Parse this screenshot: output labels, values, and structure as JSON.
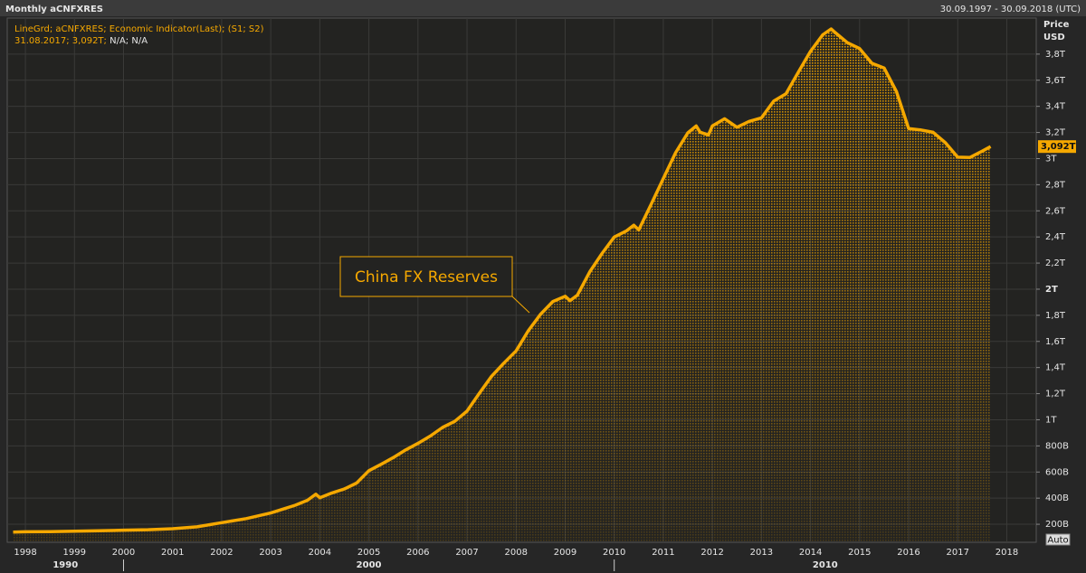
{
  "chart_data": {
    "type": "area-line",
    "title": "Monthly aCNFXRES",
    "subtitle": "30.09.1997 - 30.09.2018 (UTC)",
    "y_axis_label": [
      "Price",
      "USD"
    ],
    "annotation": "China FX Reserves",
    "legend_values": [
      "31.08.2017; 3,092T;",
      "N/A; N/A"
    ],
    "last_value_label": "3,092T",
    "button": "Auto",
    "grid": true,
    "xlim": [
      1997.63,
      2018.6
    ],
    "ylim": [
      62,
      4076
    ],
    "xticks": [
      1998,
      1999,
      2000,
      2001,
      2002,
      2003,
      2004,
      2005,
      2006,
      2007,
      2008,
      2009,
      2010,
      2011,
      2012,
      2013,
      2014,
      2015,
      2016,
      2017,
      2018
    ],
    "decades": [
      1990,
      2000,
      2010
    ],
    "yticks": [
      {
        "value": 200,
        "label": "200B"
      },
      {
        "value": 400,
        "label": "400B"
      },
      {
        "value": 600,
        "label": "600B"
      },
      {
        "value": 800,
        "label": "800B"
      },
      {
        "value": 1000,
        "label": "1T"
      },
      {
        "value": 1200,
        "label": "1,2T"
      },
      {
        "value": 1400,
        "label": "1,4T"
      },
      {
        "value": 1600,
        "label": "1,6T"
      },
      {
        "value": 1800,
        "label": "1,8T"
      },
      {
        "value": 2000,
        "label": "2T"
      },
      {
        "value": 2200,
        "label": "2,2T"
      },
      {
        "value": 2400,
        "label": "2,4T"
      },
      {
        "value": 2600,
        "label": "2,6T"
      },
      {
        "value": 2800,
        "label": "2,8T"
      },
      {
        "value": 3000,
        "label": "3T"
      },
      {
        "value": 3200,
        "label": "3,2T"
      },
      {
        "value": 3400,
        "label": "3,4T"
      },
      {
        "value": 3600,
        "label": "3,6T"
      },
      {
        "value": 3800,
        "label": "3,8T"
      }
    ],
    "x": [
      1997.75,
      1998,
      1998.5,
      1999,
      1999.5,
      2000,
      2000.5,
      2001,
      2001.5,
      2002,
      2002.5,
      2003,
      2003.25,
      2003.5,
      2003.75,
      2003.92,
      2004,
      2004.25,
      2004.5,
      2004.75,
      2005,
      2005.25,
      2005.5,
      2005.75,
      2006,
      2006.25,
      2006.5,
      2006.75,
      2007,
      2007.25,
      2007.5,
      2007.75,
      2008,
      2008.25,
      2008.5,
      2008.75,
      2009,
      2009.1,
      2009.25,
      2009.5,
      2009.75,
      2010,
      2010.25,
      2010.4,
      2010.5,
      2010.75,
      2011,
      2011.25,
      2011.5,
      2011.67,
      2011.75,
      2011.92,
      2012,
      2012.25,
      2012.5,
      2012.75,
      2013,
      2013.25,
      2013.5,
      2013.75,
      2014,
      2014.25,
      2014.42,
      2014.5,
      2014.75,
      2015,
      2015.25,
      2015.5,
      2015.75,
      2016,
      2016.25,
      2016.5,
      2016.75,
      2017,
      2017.25,
      2017.5,
      2017.67
    ],
    "series": [
      {
        "name": "LineGrd; aCNFXRES; Economic Indicator(Last); (S1; S2)",
        "color": "#f5a800",
        "values": [
          140,
          142,
          143,
          147,
          150,
          155,
          158,
          166,
          180,
          212,
          243,
          286,
          316,
          346,
          384,
          430,
          403,
          440,
          470,
          515,
          610,
          659,
          711,
          769,
          819,
          875,
          941,
          988,
          1066,
          1202,
          1333,
          1434,
          1528,
          1682,
          1809,
          1906,
          1946,
          1912,
          1954,
          2132,
          2273,
          2399,
          2447,
          2490,
          2454,
          2648,
          2847,
          3045,
          3197,
          3250,
          3202,
          3181,
          3250,
          3305,
          3240,
          3285,
          3312,
          3440,
          3497,
          3660,
          3821,
          3948,
          3993,
          3966,
          3888,
          3843,
          3730,
          3694,
          3514,
          3230,
          3219,
          3201,
          3121,
          3011,
          3009,
          3057,
          3092
        ]
      }
    ]
  }
}
